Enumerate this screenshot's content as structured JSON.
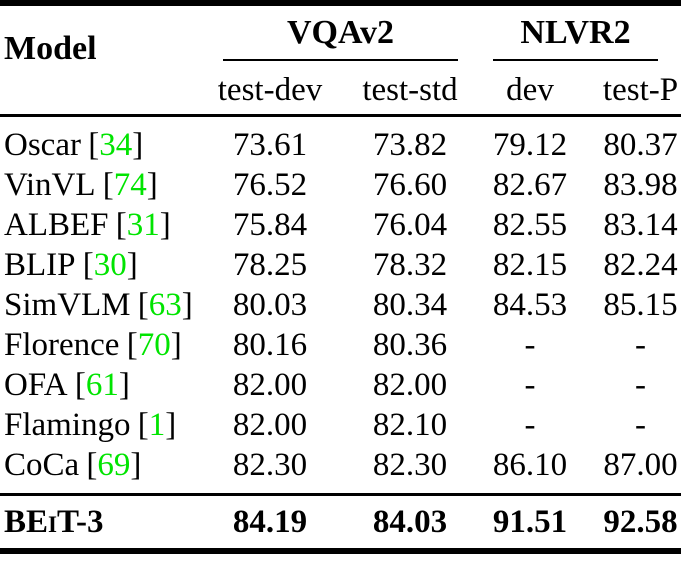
{
  "table": {
    "model_header": "Model",
    "groups": [
      {
        "label": "VQAv2",
        "subcolumns": [
          "test-dev",
          "test-std"
        ]
      },
      {
        "label": "NLVR2",
        "subcolumns": [
          "dev",
          "test-P"
        ]
      }
    ],
    "cite_open": "[",
    "cite_close": "]",
    "citation_color": "#00E400",
    "rows": [
      {
        "model": "Oscar",
        "cite": "34",
        "values": [
          "73.61",
          "73.82",
          "79.12",
          "80.37"
        ]
      },
      {
        "model": "VinVL",
        "cite": "74",
        "values": [
          "76.52",
          "76.60",
          "82.67",
          "83.98"
        ]
      },
      {
        "model": "ALBEF",
        "cite": "31",
        "values": [
          "75.84",
          "76.04",
          "82.55",
          "83.14"
        ]
      },
      {
        "model": "BLIP",
        "cite": "30",
        "values": [
          "78.25",
          "78.32",
          "82.15",
          "82.24"
        ]
      },
      {
        "model": "SimVLM",
        "cite": "63",
        "values": [
          "80.03",
          "80.34",
          "84.53",
          "85.15"
        ]
      },
      {
        "model": "Florence",
        "cite": "70",
        "values": [
          "80.16",
          "80.36",
          "-",
          "-"
        ]
      },
      {
        "model": "OFA",
        "cite": "61",
        "values": [
          "82.00",
          "82.00",
          "-",
          "-"
        ]
      },
      {
        "model": "Flamingo",
        "cite": "1",
        "values": [
          "82.00",
          "82.10",
          "-",
          "-"
        ]
      },
      {
        "model": "CoCa",
        "cite": "69",
        "values": [
          "82.30",
          "82.30",
          "86.10",
          "87.00"
        ]
      }
    ],
    "highlight_row": {
      "model": "BEiT-3",
      "values": [
        "84.19",
        "84.03",
        "91.51",
        "92.58"
      ]
    }
  }
}
